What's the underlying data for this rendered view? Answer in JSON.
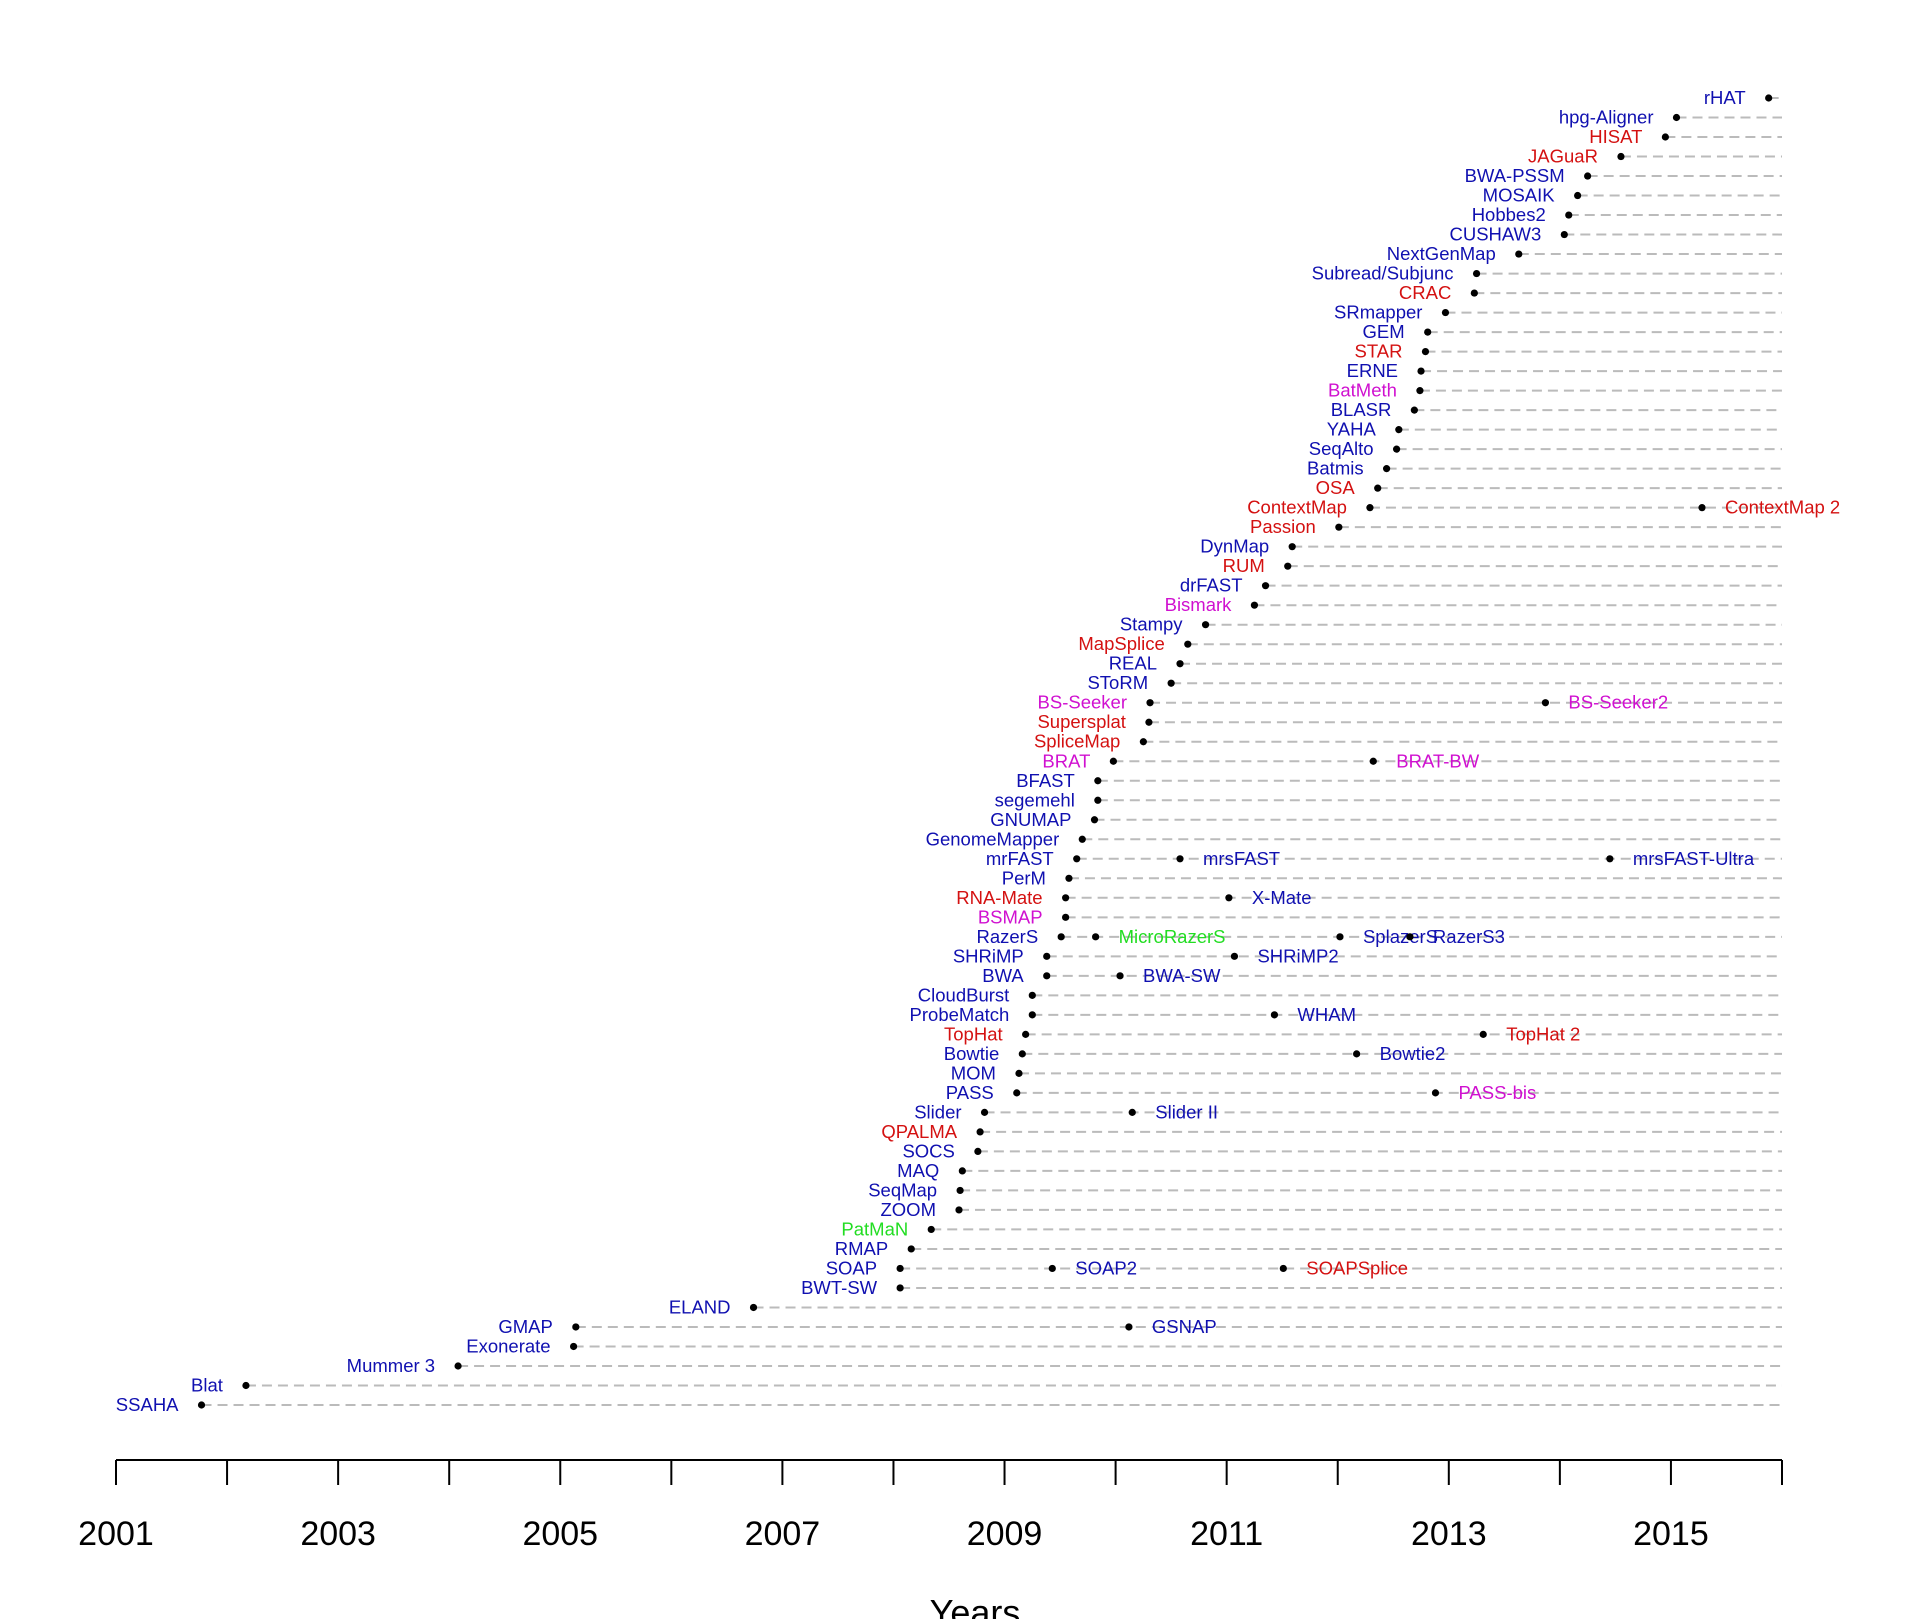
{
  "chart_data": {
    "type": "scatter",
    "title": "",
    "xlabel": "Years",
    "ylabel": "",
    "xlim": [
      2001,
      2016
    ],
    "x_ticks": [
      2001,
      2002,
      2003,
      2004,
      2005,
      2006,
      2007,
      2008,
      2009,
      2010,
      2011,
      2012,
      2013,
      2014,
      2015,
      2016
    ],
    "x_tick_labels": [
      {
        "x": 2001,
        "label": "2001"
      },
      {
        "x": 2003,
        "label": "2003"
      },
      {
        "x": 2005,
        "label": "2005"
      },
      {
        "x": 2007,
        "label": "2007"
      },
      {
        "x": 2009,
        "label": "2009"
      },
      {
        "x": 2011,
        "label": "2011"
      },
      {
        "x": 2013,
        "label": "2013"
      },
      {
        "x": 2015,
        "label": "2015"
      }
    ],
    "grid": "dashed horizontal guide line per tool",
    "colors": {
      "blue": "#1010b0",
      "red": "#d41111",
      "magenta": "#d010d0",
      "green": "#22dd22",
      "guide": "#bbbbbb",
      "dot": "#000000"
    },
    "tools": [
      {
        "name": "SSAHA",
        "x": 2001.77,
        "color": "blue"
      },
      {
        "name": "Blat",
        "x": 2002.17,
        "color": "blue"
      },
      {
        "name": "Mummer 3",
        "x": 2004.08,
        "color": "blue"
      },
      {
        "name": "Exonerate",
        "x": 2005.12,
        "color": "blue"
      },
      {
        "name": "GMAP",
        "x": 2005.14,
        "color": "blue",
        "later": [
          {
            "name": "GSNAP",
            "x": 2010.12,
            "color": "blue"
          }
        ]
      },
      {
        "name": "ELAND",
        "x": 2006.74,
        "color": "blue"
      },
      {
        "name": "BWT-SW",
        "x": 2008.06,
        "color": "blue"
      },
      {
        "name": "SOAP",
        "x": 2008.06,
        "color": "blue",
        "later": [
          {
            "name": "SOAP2",
            "x": 2009.43,
            "color": "blue"
          },
          {
            "name": "SOAPSplice",
            "x": 2011.51,
            "color": "red"
          }
        ]
      },
      {
        "name": "RMAP",
        "x": 2008.16,
        "color": "blue"
      },
      {
        "name": "PatMaN",
        "x": 2008.34,
        "color": "green"
      },
      {
        "name": "ZOOM",
        "x": 2008.59,
        "color": "blue"
      },
      {
        "name": "SeqMap",
        "x": 2008.6,
        "color": "blue"
      },
      {
        "name": "MAQ",
        "x": 2008.62,
        "color": "blue"
      },
      {
        "name": "SOCS",
        "x": 2008.76,
        "color": "blue"
      },
      {
        "name": "QPALMA",
        "x": 2008.78,
        "color": "red"
      },
      {
        "name": "Slider",
        "x": 2008.82,
        "color": "blue",
        "later": [
          {
            "name": "Slider II",
            "x": 2010.15,
            "color": "blue"
          }
        ]
      },
      {
        "name": "PASS",
        "x": 2009.11,
        "color": "blue",
        "later": [
          {
            "name": "PASS-bis",
            "x": 2012.88,
            "color": "magenta"
          }
        ]
      },
      {
        "name": "MOM",
        "x": 2009.13,
        "color": "blue"
      },
      {
        "name": "Bowtie",
        "x": 2009.16,
        "color": "blue",
        "later": [
          {
            "name": "Bowtie2",
            "x": 2012.17,
            "color": "blue"
          }
        ]
      },
      {
        "name": "TopHat",
        "x": 2009.19,
        "color": "red",
        "later": [
          {
            "name": "TopHat 2",
            "x": 2013.31,
            "color": "red"
          }
        ]
      },
      {
        "name": "ProbeMatch",
        "x": 2009.25,
        "color": "blue",
        "later": [
          {
            "name": "WHAM",
            "x": 2011.43,
            "color": "blue"
          }
        ]
      },
      {
        "name": "CloudBurst",
        "x": 2009.25,
        "color": "blue"
      },
      {
        "name": "BWA",
        "x": 2009.38,
        "color": "blue",
        "later": [
          {
            "name": "BWA-SW",
            "x": 2010.04,
            "color": "blue"
          }
        ]
      },
      {
        "name": "SHRiMP",
        "x": 2009.38,
        "color": "blue",
        "later": [
          {
            "name": "SHRiMP2",
            "x": 2011.07,
            "color": "blue"
          }
        ]
      },
      {
        "name": "RazerS",
        "x": 2009.51,
        "color": "blue",
        "later": [
          {
            "name": "MicroRazerS",
            "x": 2009.82,
            "color": "green"
          },
          {
            "name": "SplazerS",
            "x": 2012.02,
            "color": "blue"
          },
          {
            "name": "RazerS3",
            "x": 2012.65,
            "color": "blue"
          }
        ]
      },
      {
        "name": "BSMAP",
        "x": 2009.55,
        "color": "magenta"
      },
      {
        "name": "RNA-Mate",
        "x": 2009.55,
        "color": "red",
        "later": [
          {
            "name": "X-Mate",
            "x": 2011.02,
            "color": "blue"
          }
        ]
      },
      {
        "name": "PerM",
        "x": 2009.58,
        "color": "blue"
      },
      {
        "name": "mrFAST",
        "x": 2009.65,
        "color": "blue",
        "later": [
          {
            "name": "mrsFAST",
            "x": 2010.58,
            "color": "blue"
          },
          {
            "name": "mrsFAST-Ultra",
            "x": 2014.45,
            "color": "blue"
          }
        ]
      },
      {
        "name": "GenomeMapper",
        "x": 2009.7,
        "color": "blue"
      },
      {
        "name": "GNUMAP",
        "x": 2009.81,
        "color": "blue"
      },
      {
        "name": "segemehl",
        "x": 2009.84,
        "color": "blue"
      },
      {
        "name": "BFAST",
        "x": 2009.84,
        "color": "blue"
      },
      {
        "name": "BRAT",
        "x": 2009.98,
        "color": "magenta",
        "later": [
          {
            "name": "BRAT-BW",
            "x": 2012.32,
            "color": "magenta"
          }
        ]
      },
      {
        "name": "SpliceMap",
        "x": 2010.25,
        "color": "red"
      },
      {
        "name": "Supersplat",
        "x": 2010.3,
        "color": "red"
      },
      {
        "name": "BS-Seeker",
        "x": 2010.31,
        "color": "magenta",
        "later": [
          {
            "name": "BS-Seeker2",
            "x": 2013.87,
            "color": "magenta"
          }
        ]
      },
      {
        "name": "SToRM",
        "x": 2010.5,
        "color": "blue"
      },
      {
        "name": "REAL",
        "x": 2010.58,
        "color": "blue"
      },
      {
        "name": "MapSplice",
        "x": 2010.65,
        "color": "red"
      },
      {
        "name": "Stampy",
        "x": 2010.81,
        "color": "blue"
      },
      {
        "name": "Bismark",
        "x": 2011.25,
        "color": "magenta"
      },
      {
        "name": "drFAST",
        "x": 2011.35,
        "color": "blue"
      },
      {
        "name": "RUM",
        "x": 2011.55,
        "color": "red"
      },
      {
        "name": "DynMap",
        "x": 2011.59,
        "color": "blue"
      },
      {
        "name": "Passion",
        "x": 2012.01,
        "color": "red"
      },
      {
        "name": "ContextMap",
        "x": 2012.29,
        "color": "red",
        "later": [
          {
            "name": "ContextMap 2",
            "x": 2015.28,
            "color": "red"
          }
        ]
      },
      {
        "name": "OSA",
        "x": 2012.36,
        "color": "red"
      },
      {
        "name": "Batmis",
        "x": 2012.44,
        "color": "blue"
      },
      {
        "name": "SeqAlto",
        "x": 2012.53,
        "color": "blue"
      },
      {
        "name": "YAHA",
        "x": 2012.55,
        "color": "blue"
      },
      {
        "name": "BLASR",
        "x": 2012.69,
        "color": "blue"
      },
      {
        "name": "BatMeth",
        "x": 2012.74,
        "color": "magenta"
      },
      {
        "name": "ERNE",
        "x": 2012.75,
        "color": "blue"
      },
      {
        "name": "STAR",
        "x": 2012.79,
        "color": "red"
      },
      {
        "name": "GEM",
        "x": 2012.81,
        "color": "blue"
      },
      {
        "name": "SRmapper",
        "x": 2012.97,
        "color": "blue"
      },
      {
        "name": "CRAC",
        "x": 2013.23,
        "color": "red"
      },
      {
        "name": "Subread/Subjunc",
        "x": 2013.25,
        "color": "blue"
      },
      {
        "name": "NextGenMap",
        "x": 2013.63,
        "color": "blue"
      },
      {
        "name": "CUSHAW3",
        "x": 2014.04,
        "color": "blue"
      },
      {
        "name": "Hobbes2",
        "x": 2014.08,
        "color": "blue"
      },
      {
        "name": "MOSAIK",
        "x": 2014.16,
        "color": "blue"
      },
      {
        "name": "BWA-PSSM",
        "x": 2014.25,
        "color": "blue"
      },
      {
        "name": "JAGuaR",
        "x": 2014.55,
        "color": "red"
      },
      {
        "name": "HISAT",
        "x": 2014.95,
        "color": "red"
      },
      {
        "name": "hpg-Aligner",
        "x": 2015.05,
        "color": "blue"
      },
      {
        "name": "rHAT",
        "x": 2015.88,
        "color": "blue"
      }
    ]
  }
}
